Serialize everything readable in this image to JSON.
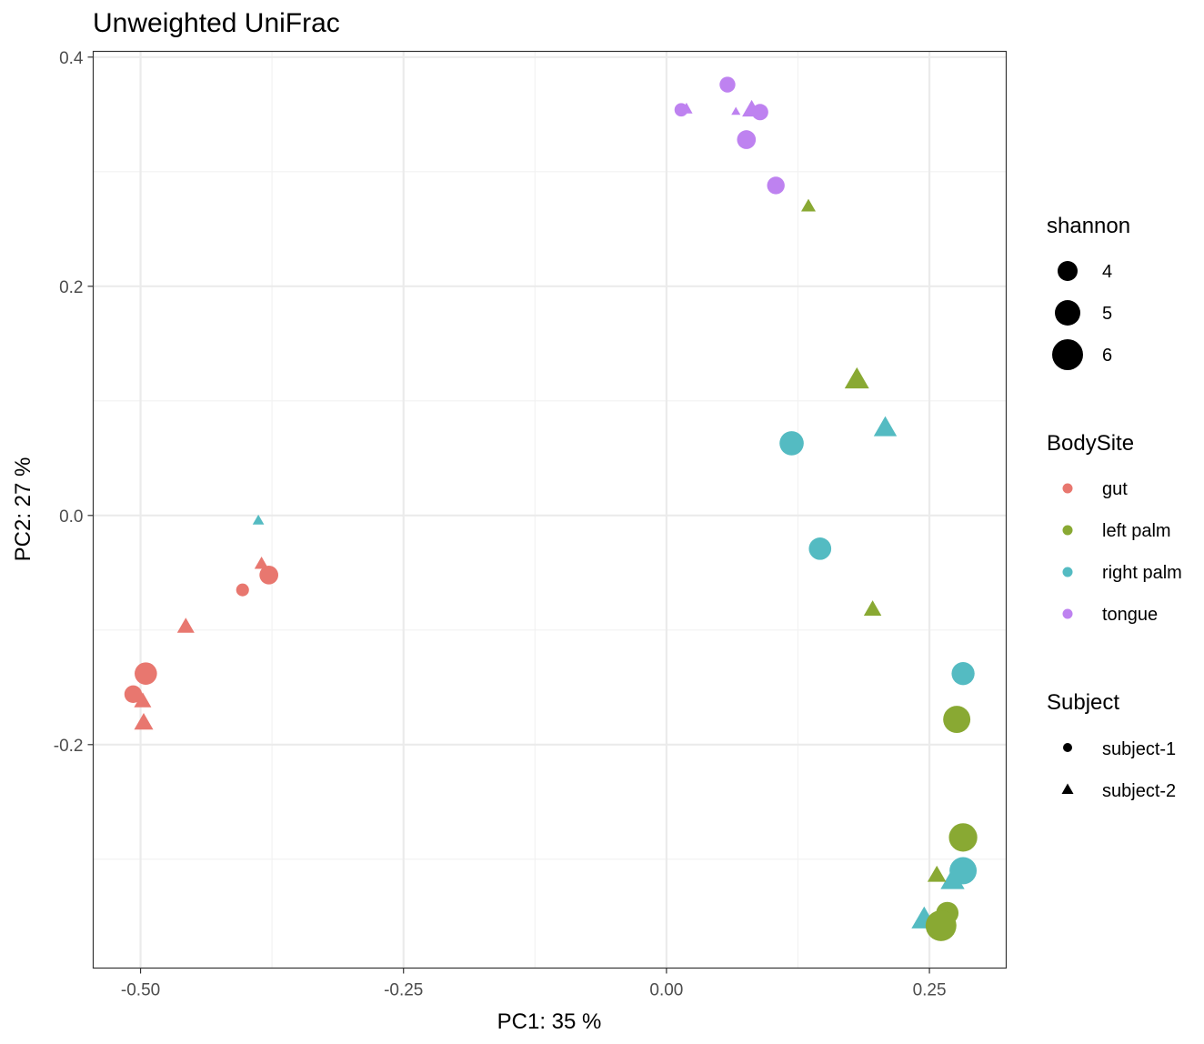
{
  "chart_data": {
    "type": "scatter",
    "title": "Unweighted UniFrac",
    "xlabel": "PC1:  35 %",
    "ylabel": "PC2:  27 %",
    "xlim": [
      -0.545,
      0.323
    ],
    "ylim": [
      -0.395,
      0.405
    ],
    "x_ticks": [
      {
        "value": -0.5,
        "label": "-0.50"
      },
      {
        "value": -0.25,
        "label": "-0.25"
      },
      {
        "value": 0.0,
        "label": "0.00"
      },
      {
        "value": 0.25,
        "label": "0.25"
      }
    ],
    "y_ticks": [
      {
        "value": 0.4,
        "label": "0.4"
      },
      {
        "value": 0.2,
        "label": "0.2"
      },
      {
        "value": 0.0,
        "label": "0.0"
      },
      {
        "value": -0.2,
        "label": "-0.2"
      }
    ],
    "colors": {
      "gut": "#E8776F",
      "left palm": "#89A933",
      "right palm": "#54BBC2",
      "tongue": "#BE82F0"
    },
    "legend": {
      "shannon": {
        "title": "shannon",
        "values": [
          4,
          5,
          6
        ]
      },
      "bodysite": {
        "title": "BodySite",
        "items": [
          "gut",
          "left palm",
          "right palm",
          "tongue"
        ]
      },
      "subject": {
        "title": "Subject",
        "items": [
          "subject-1",
          "subject-2"
        ],
        "symbols": [
          "circle",
          "triangle"
        ]
      }
    },
    "points": [
      {
        "x": -0.507,
        "y": -0.156,
        "site": "gut",
        "subject": "subject-1",
        "shannon": 3.6
      },
      {
        "x": -0.495,
        "y": -0.138,
        "site": "gut",
        "subject": "subject-1",
        "shannon": 4.4
      },
      {
        "x": -0.403,
        "y": -0.065,
        "site": "gut",
        "subject": "subject-1",
        "shannon": 2.8
      },
      {
        "x": -0.378,
        "y": -0.052,
        "site": "gut",
        "subject": "subject-1",
        "shannon": 3.8
      },
      {
        "x": -0.498,
        "y": -0.163,
        "site": "gut",
        "subject": "subject-2",
        "shannon": 4.5
      },
      {
        "x": -0.497,
        "y": -0.182,
        "site": "gut",
        "subject": "subject-2",
        "shannon": 4.9
      },
      {
        "x": -0.457,
        "y": -0.098,
        "site": "gut",
        "subject": "subject-2",
        "shannon": 4.5
      },
      {
        "x": -0.385,
        "y": -0.043,
        "site": "gut",
        "subject": "subject-2",
        "shannon": 3.8
      },
      {
        "x": -0.388,
        "y": -0.005,
        "site": "right palm",
        "subject": "subject-2",
        "shannon": 3.2
      },
      {
        "x": 0.119,
        "y": 0.063,
        "site": "right palm",
        "subject": "subject-1",
        "shannon": 4.7
      },
      {
        "x": 0.146,
        "y": -0.029,
        "site": "right palm",
        "subject": "subject-1",
        "shannon": 4.4
      },
      {
        "x": 0.282,
        "y": -0.138,
        "site": "right palm",
        "subject": "subject-1",
        "shannon": 4.5
      },
      {
        "x": 0.282,
        "y": -0.31,
        "site": "right palm",
        "subject": "subject-1",
        "shannon": 5.2
      },
      {
        "x": 0.208,
        "y": 0.075,
        "site": "right palm",
        "subject": "subject-2",
        "shannon": 5.8
      },
      {
        "x": 0.272,
        "y": -0.32,
        "site": "right palm",
        "subject": "subject-2",
        "shannon": 6.0
      },
      {
        "x": 0.245,
        "y": -0.354,
        "site": "right palm",
        "subject": "subject-2",
        "shannon": 6.3
      },
      {
        "x": 0.276,
        "y": -0.178,
        "site": "left palm",
        "subject": "subject-1",
        "shannon": 5.2
      },
      {
        "x": 0.282,
        "y": -0.281,
        "site": "left palm",
        "subject": "subject-1",
        "shannon": 5.4
      },
      {
        "x": 0.267,
        "y": -0.347,
        "site": "left palm",
        "subject": "subject-1",
        "shannon": 4.4
      },
      {
        "x": 0.261,
        "y": -0.358,
        "site": "left palm",
        "subject": "subject-1",
        "shannon": 5.8
      },
      {
        "x": 0.135,
        "y": 0.269,
        "site": "left palm",
        "subject": "subject-2",
        "shannon": 3.9
      },
      {
        "x": 0.181,
        "y": 0.117,
        "site": "left palm",
        "subject": "subject-2",
        "shannon": 6.1
      },
      {
        "x": 0.196,
        "y": -0.083,
        "site": "left palm",
        "subject": "subject-2",
        "shannon": 4.6
      },
      {
        "x": 0.257,
        "y": -0.315,
        "site": "left palm",
        "subject": "subject-2",
        "shannon": 4.8
      },
      {
        "x": 0.058,
        "y": 0.376,
        "site": "tongue",
        "subject": "subject-1",
        "shannon": 3.3
      },
      {
        "x": 0.014,
        "y": 0.354,
        "site": "tongue",
        "subject": "subject-1",
        "shannon": 2.9
      },
      {
        "x": 0.089,
        "y": 0.352,
        "site": "tongue",
        "subject": "subject-1",
        "shannon": 3.4
      },
      {
        "x": 0.076,
        "y": 0.328,
        "site": "tongue",
        "subject": "subject-1",
        "shannon": 3.8
      },
      {
        "x": 0.104,
        "y": 0.288,
        "site": "tongue",
        "subject": "subject-1",
        "shannon": 3.6
      },
      {
        "x": 0.019,
        "y": 0.354,
        "site": "tongue",
        "subject": "subject-2",
        "shannon": 3.4
      },
      {
        "x": 0.066,
        "y": 0.352,
        "site": "tongue",
        "subject": "subject-2",
        "shannon": 2.7
      },
      {
        "x": 0.081,
        "y": 0.353,
        "site": "tongue",
        "subject": "subject-2",
        "shannon": 4.9
      }
    ]
  }
}
